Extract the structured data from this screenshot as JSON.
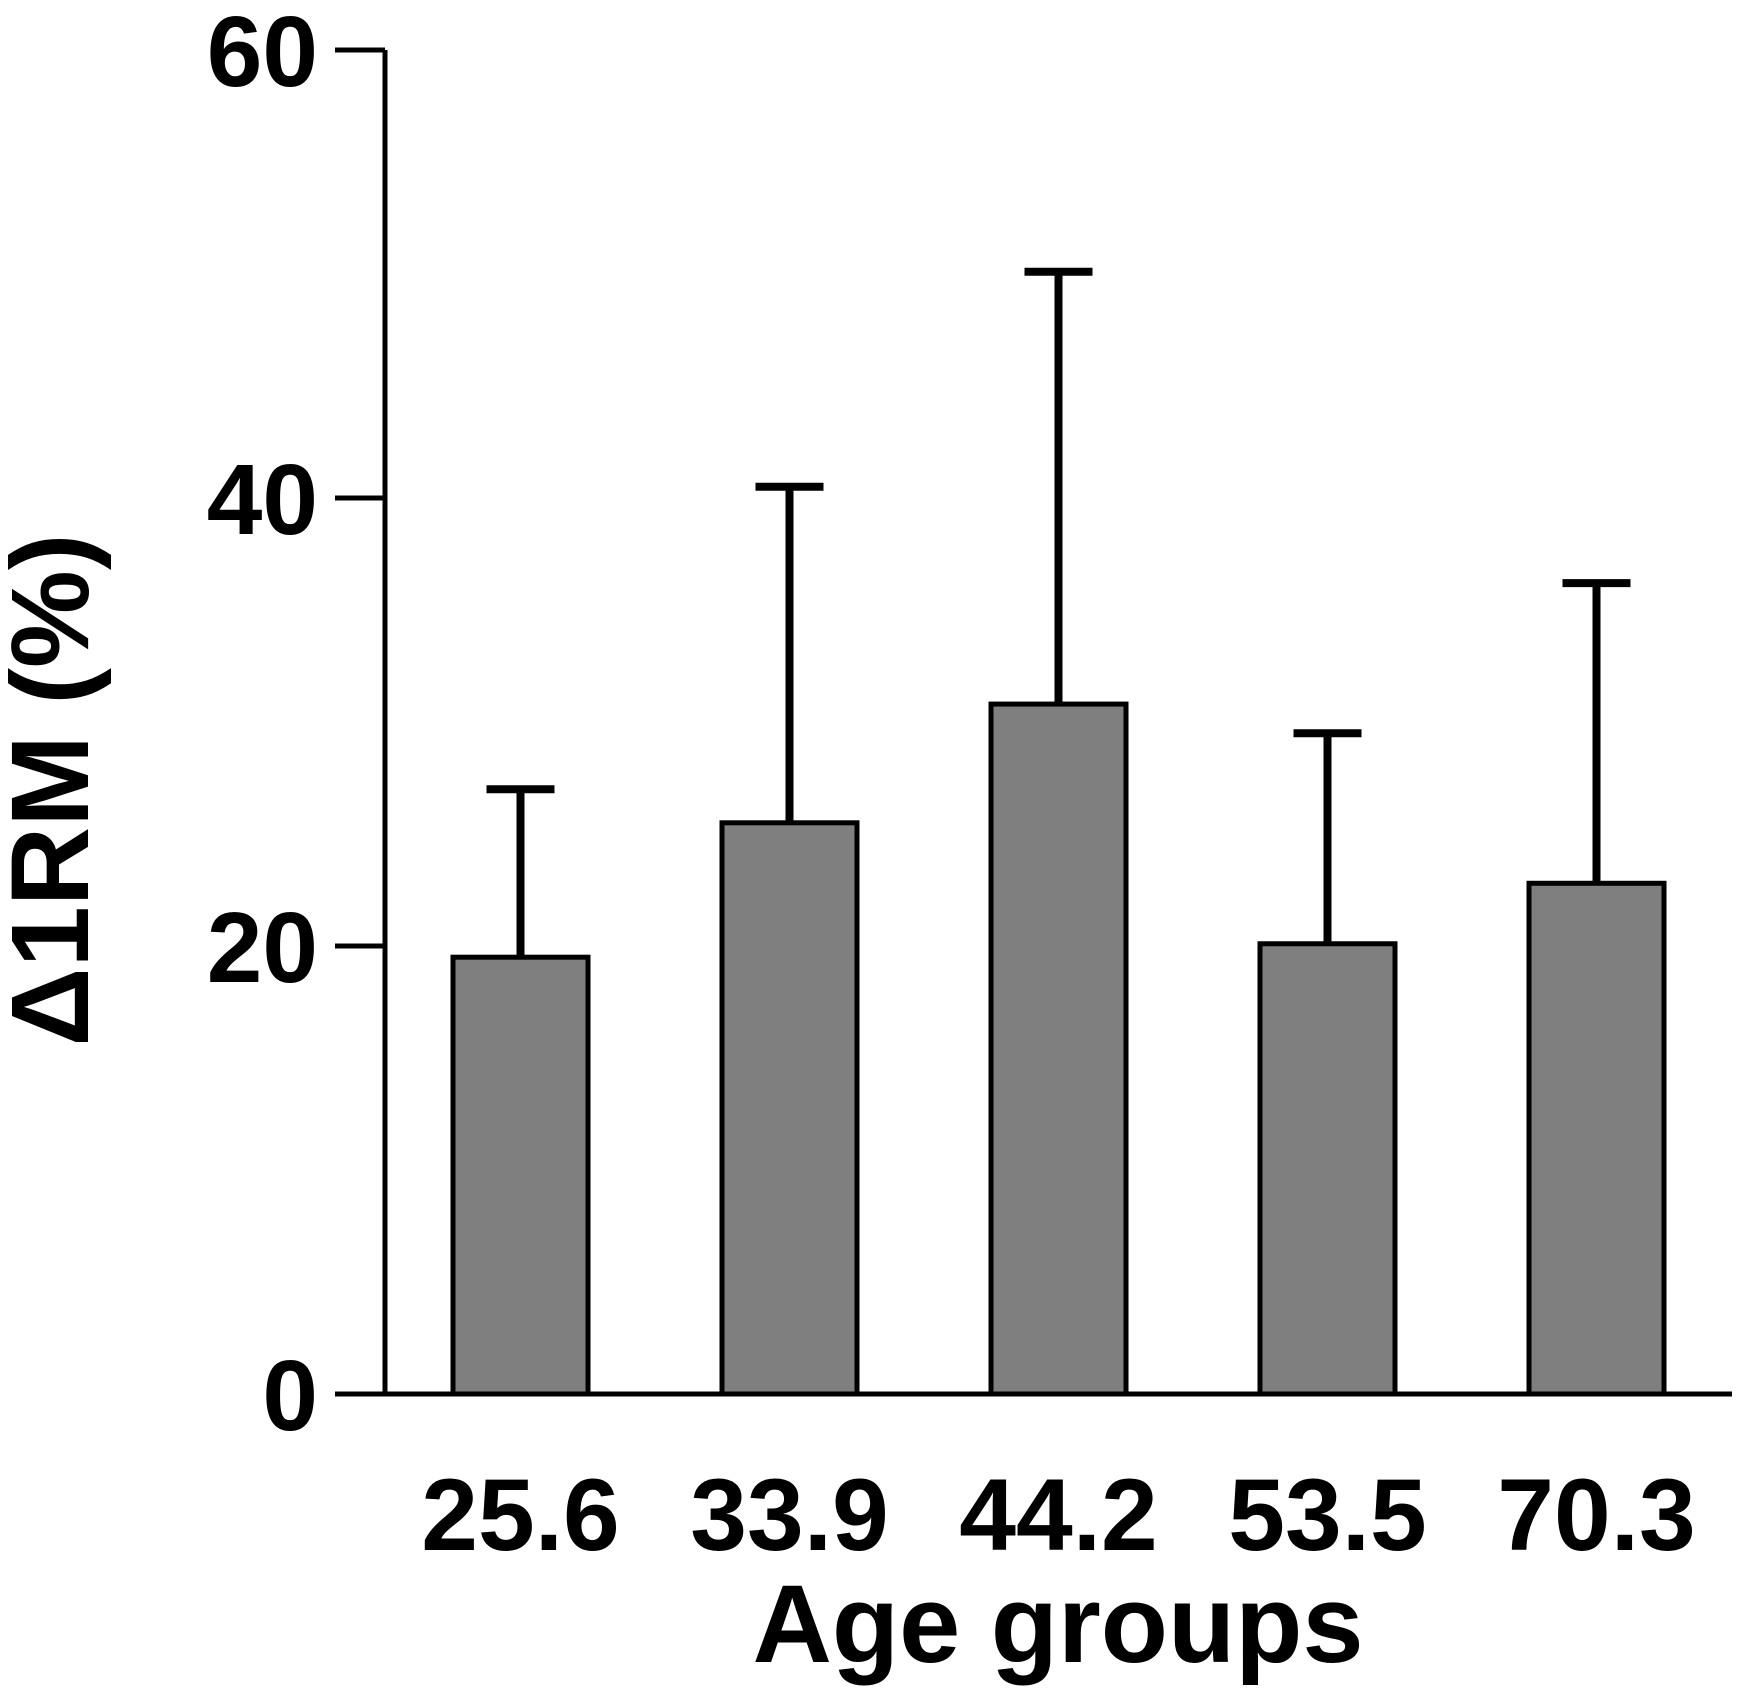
{
  "chart_data": {
    "type": "bar",
    "title": "",
    "categories": [
      "25.6",
      "33.9",
      "44.2",
      "53.5",
      "70.3"
    ],
    "values": [
      19.5,
      25.5,
      30.8,
      20.1,
      22.8
    ],
    "error_up": [
      7.5,
      15.0,
      19.3,
      9.4,
      13.4
    ],
    "error_bar_tops": [
      27.0,
      40.5,
      50.1,
      29.5,
      36.2
    ],
    "xlabel": "Age groups",
    "ylabel": "Δ1RM (%)",
    "yticks": [
      0,
      20,
      40,
      60
    ],
    "ylim": [
      0,
      60
    ],
    "grid": false,
    "legend": false,
    "error_bars": "upper-only",
    "bar_fill_color": "#7f7f7f",
    "bar_edge_color": "#000000",
    "axis_color": "#000000",
    "background_color": "#ffffff"
  }
}
